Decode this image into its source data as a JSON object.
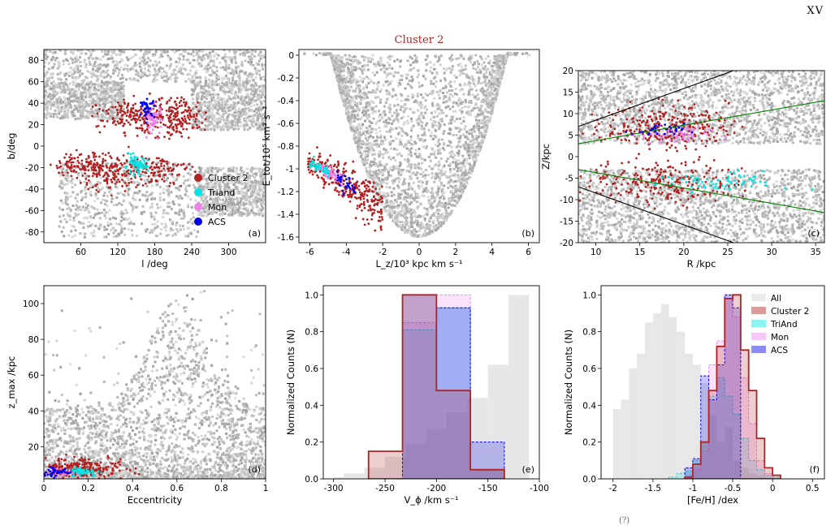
{
  "page": {
    "number": "XV",
    "footer_fragment": "(?)"
  },
  "colors": {
    "background_density": "#c4c4c4",
    "cluster2": "#b22222",
    "triand": "#00e5e5",
    "mon": "#ee82ee",
    "acs": "#0000ee",
    "all": "#d3d3d3",
    "line_black": "#000000",
    "line_green": "#008000",
    "title": "#b22222"
  },
  "figure_title": "Cluster 2",
  "chart_data": [
    {
      "id": "a",
      "type": "scatter",
      "panel_label": "(a)",
      "xlabel": "l /deg",
      "ylabel": "b/deg",
      "xlim": [
        0,
        360
      ],
      "ylim": [
        -90,
        90
      ],
      "xticks": [
        60,
        120,
        180,
        240,
        300
      ],
      "yticks": [
        -80,
        -60,
        -40,
        -20,
        0,
        20,
        40,
        60,
        80
      ],
      "legend": {
        "position": "lower-right",
        "entries": [
          {
            "label": "Cluster 2",
            "color": "#b22222"
          },
          {
            "label": "Triand",
            "color": "#00e5e5"
          },
          {
            "label": "Mon",
            "color": "#ee82ee"
          },
          {
            "label": "ACS",
            "color": "#0000ee"
          }
        ]
      },
      "background_regions": [
        {
          "x": [
            0,
            360
          ],
          "y": [
            60,
            90
          ]
        },
        {
          "x": [
            0,
            130
          ],
          "y": [
            25,
            60
          ]
        },
        {
          "x": [
            240,
            360
          ],
          "y": [
            15,
            60
          ]
        },
        {
          "x": [
            25,
            250
          ],
          "y": [
            -85,
            -15
          ]
        },
        {
          "x": [
            250,
            360
          ],
          "y": [
            -65,
            -20
          ]
        }
      ],
      "series": [
        {
          "name": "Cluster 2",
          "clusters": [
            {
              "cx": 165,
              "cy": 27,
              "sx": 38,
              "sy": 8,
              "n": 260
            },
            {
              "cx": 225,
              "cy": 28,
              "sx": 16,
              "sy": 9,
              "n": 90
            },
            {
              "cx": 80,
              "cy": -18,
              "sx": 32,
              "sy": 6,
              "n": 180
            },
            {
              "cx": 175,
              "cy": -22,
              "sx": 30,
              "sy": 7,
              "n": 130
            },
            {
              "cx": 100,
              "cy": -32,
              "sx": 25,
              "sy": 6,
              "n": 50
            }
          ]
        },
        {
          "name": "Triand",
          "clusters": [
            {
              "cx": 150,
              "cy": -18,
              "sx": 9,
              "sy": 4,
              "n": 70
            }
          ]
        },
        {
          "name": "Mon",
          "clusters": [
            {
              "cx": 178,
              "cy": 25,
              "sx": 7,
              "sy": 7,
              "n": 55
            }
          ]
        },
        {
          "name": "ACS",
          "clusters": [
            {
              "cx": 168,
              "cy": 35,
              "sx": 6,
              "sy": 4,
              "n": 35
            }
          ]
        }
      ]
    },
    {
      "id": "b",
      "type": "scatter",
      "panel_label": "(b)",
      "xlabel": "L_z/10³ kpc km s⁻¹",
      "ylabel": "E_tot/10⁵ km² s⁻²",
      "xlim": [
        -6.6,
        6.6
      ],
      "ylim": [
        -1.65,
        0.05
      ],
      "xticks": [
        -6,
        -4,
        -2,
        0,
        2,
        4,
        6
      ],
      "yticks": [
        -1.6,
        -1.4,
        -1.2,
        -1.0,
        -0.8,
        -0.6,
        -0.4,
        -0.2,
        0.0
      ],
      "background_shape": "v-shape",
      "series": [
        {
          "name": "Cluster 2",
          "curve": {
            "x0": -6.1,
            "x1": -2.0,
            "ya": -0.95,
            "yb": -1.38,
            "width": 0.07
          },
          "n": 320
        },
        {
          "name": "Mon",
          "curve": {
            "x0": -5.6,
            "x1": -4.2,
            "ya": -0.95,
            "yb": -1.38,
            "width": 0.03
          },
          "n": 70
        },
        {
          "name": "Triand",
          "curve": {
            "x0": -6.0,
            "x1": -4.8,
            "ya": -0.95,
            "yb": -1.38,
            "width": 0.03
          },
          "n": 45
        },
        {
          "name": "ACS",
          "curve": {
            "x0": -4.5,
            "x1": -3.5,
            "ya": -0.95,
            "yb": -1.38,
            "width": 0.03
          },
          "n": 30
        }
      ]
    },
    {
      "id": "c",
      "type": "scatter",
      "panel_label": "(c)",
      "xlabel": "R /kpc",
      "ylabel": "Z/kpc",
      "xlim": [
        8,
        36
      ],
      "ylim": [
        -20,
        20
      ],
      "xticks": [
        10,
        15,
        20,
        25,
        30,
        35
      ],
      "yticks": [
        -20,
        -15,
        -10,
        -5,
        0,
        5,
        10,
        15,
        20
      ],
      "lines": [
        {
          "color": "#000000",
          "points": [
            [
              8,
              7
            ],
            [
              27,
              21
            ]
          ]
        },
        {
          "color": "#000000",
          "points": [
            [
              8,
              -7
            ],
            [
              27,
              -21
            ]
          ]
        },
        {
          "color": "#008000",
          "points": [
            [
              8,
              3
            ],
            [
              36,
              13
            ]
          ]
        },
        {
          "color": "#008000",
          "points": [
            [
              8,
              -3
            ],
            [
              36,
              -13
            ]
          ]
        }
      ],
      "series": [
        {
          "name": "Cluster 2",
          "clusters": [
            {
              "cx": 18,
              "cy": 7,
              "sx": 3.5,
              "sy": 2.5,
              "n": 280
            },
            {
              "cx": 18,
              "cy": -6,
              "sx": 4.5,
              "sy": 2.5,
              "n": 240
            }
          ]
        },
        {
          "name": "Triand",
          "clusters": [
            {
              "cx": 24,
              "cy": -6,
              "sx": 3.5,
              "sy": 1.2,
              "n": 70
            }
          ]
        },
        {
          "name": "Mon",
          "clusters": [
            {
              "cx": 19,
              "cy": 5,
              "sx": 2.0,
              "sy": 1.0,
              "n": 60
            }
          ]
        },
        {
          "name": "ACS",
          "clusters": [
            {
              "cx": 17,
              "cy": 6,
              "sx": 1.5,
              "sy": 0.8,
              "n": 30
            }
          ]
        }
      ]
    },
    {
      "id": "d",
      "type": "scatter",
      "panel_label": "(d)",
      "xlabel": "Eccentricity",
      "ylabel": "z_max /kpc",
      "xlim": [
        0,
        1
      ],
      "ylim": [
        2,
        110
      ],
      "xticks": [
        0.0,
        0.2,
        0.4,
        0.6,
        0.8,
        1.0
      ],
      "yticks": [
        20,
        40,
        60,
        80,
        100
      ],
      "series": [
        {
          "name": "Cluster 2",
          "clusters": [
            {
              "cx": 0.17,
              "cy": 8,
              "sx": 0.09,
              "sy": 2.5,
              "n": 260
            }
          ]
        },
        {
          "name": "Triand",
          "clusters": [
            {
              "cx": 0.17,
              "cy": 6,
              "sx": 0.04,
              "sy": 1.2,
              "n": 60
            }
          ]
        },
        {
          "name": "Mon",
          "clusters": [
            {
              "cx": 0.07,
              "cy": 5,
              "sx": 0.03,
              "sy": 1.0,
              "n": 30
            }
          ]
        },
        {
          "name": "ACS",
          "clusters": [
            {
              "cx": 0.05,
              "cy": 6,
              "sx": 0.03,
              "sy": 1.2,
              "n": 40
            }
          ]
        }
      ]
    },
    {
      "id": "e",
      "type": "histogram",
      "panel_label": "(e)",
      "xlabel": "V_ϕ /km s⁻¹",
      "ylabel": "Normalized Counts (N)",
      "xlim": [
        -310,
        -100
      ],
      "ylim": [
        0,
        1.05
      ],
      "xticks": [
        -300,
        -250,
        -200,
        -150,
        -100
      ],
      "yticks": [
        0.0,
        0.2,
        0.4,
        0.6,
        0.8,
        1.0
      ],
      "series": [
        {
          "name": "All",
          "style": "filled",
          "edges": [
            -320,
            -300,
            -290,
            -270,
            -250,
            -230,
            -210,
            -190,
            -170,
            -150,
            -130,
            -110
          ],
          "values": [
            0.0,
            0.01,
            0.03,
            0.06,
            0.12,
            0.19,
            0.27,
            0.36,
            0.44,
            0.62,
            1.0
          ]
        },
        {
          "name": "TriAnd",
          "style": "step",
          "edges": [
            -266,
            -233,
            -200,
            -167,
            -134
          ],
          "values": [
            0.0,
            0.81,
            0.93,
            0.05
          ]
        },
        {
          "name": "Mon",
          "style": "step",
          "edges": [
            -266,
            -233,
            -200,
            -167,
            -134
          ],
          "values": [
            0.0,
            0.85,
            1.0,
            0.05
          ]
        },
        {
          "name": "ACS",
          "style": "step",
          "edges": [
            -266,
            -233,
            -200,
            -167,
            -134
          ],
          "values": [
            0.0,
            1.0,
            0.93,
            0.2
          ]
        },
        {
          "name": "Cluster 2",
          "style": "step",
          "edges": [
            -266,
            -233,
            -200,
            -167,
            -134
          ],
          "values": [
            0.15,
            1.0,
            0.48,
            0.05
          ]
        }
      ]
    },
    {
      "id": "f",
      "type": "histogram",
      "panel_label": "(f)",
      "xlabel": "[Fe/H] /dex",
      "ylabel": "Normalized Counts (N)",
      "xlim": [
        -2.15,
        0.65
      ],
      "ylim": [
        0,
        1.05
      ],
      "xticks": [
        -2.0,
        -1.5,
        -1.0,
        -0.5,
        0.0,
        0.5
      ],
      "yticks": [
        0.0,
        0.2,
        0.4,
        0.6,
        0.8,
        1.0
      ],
      "legend": {
        "position": "top-right",
        "entries": [
          {
            "label": "All",
            "color": "#d3d3d3"
          },
          {
            "label": "Cluster 2",
            "color": "#b22222"
          },
          {
            "label": "TriAnd",
            "color": "#00e5e5"
          },
          {
            "label": "Mon",
            "color": "#ee82ee"
          },
          {
            "label": "ACS",
            "color": "#0000ee"
          }
        ]
      },
      "series": [
        {
          "name": "All",
          "style": "filled",
          "edges": [
            -2.0,
            -1.9,
            -1.8,
            -1.7,
            -1.6,
            -1.5,
            -1.4,
            -1.3,
            -1.2,
            -1.1,
            -1.0,
            -0.9,
            -0.8,
            -0.7,
            -0.6,
            -0.5,
            -0.4,
            -0.3,
            -0.2,
            -0.1,
            0.0
          ],
          "values": [
            0.38,
            0.43,
            0.6,
            0.68,
            0.85,
            0.9,
            0.95,
            0.88,
            0.8,
            0.68,
            0.62,
            0.52,
            0.35,
            0.2,
            0.28,
            0.1,
            0.06,
            0.03,
            0.02,
            0.01
          ]
        },
        {
          "name": "TriAnd",
          "style": "step",
          "edges": [
            -1.3,
            -1.2,
            -1.1,
            -1.0,
            -0.9,
            -0.8,
            -0.7,
            -0.6,
            -0.5,
            -0.4,
            -0.3,
            -0.2,
            -0.1,
            0.0,
            0.1
          ],
          "values": [
            0.01,
            0.03,
            0.04,
            0.1,
            0.2,
            0.45,
            0.55,
            0.45,
            0.35,
            0.22,
            0.1,
            0.05,
            0.02,
            0.01
          ]
        },
        {
          "name": "Mon",
          "style": "step",
          "edges": [
            -1.1,
            -1.0,
            -0.9,
            -0.8,
            -0.7,
            -0.6,
            -0.5,
            -0.4,
            -0.3,
            -0.2,
            -0.1,
            0.0
          ],
          "values": [
            0.02,
            0.05,
            0.15,
            0.62,
            0.75,
            1.0,
            0.88,
            0.55,
            0.3,
            0.1,
            0.03
          ]
        },
        {
          "name": "ACS",
          "style": "step",
          "edges": [
            -1.1,
            -1.0,
            -0.9,
            -0.8,
            -0.7,
            -0.6,
            -0.5,
            -0.4
          ],
          "values": [
            0.06,
            0.11,
            0.56,
            0.43,
            0.62,
            1.0,
            0.93
          ]
        },
        {
          "name": "Cluster 2",
          "style": "step",
          "edges": [
            -1.1,
            -1.0,
            -0.9,
            -0.8,
            -0.7,
            -0.6,
            -0.5,
            -0.4,
            -0.3,
            -0.2,
            -0.1,
            0.0,
            0.1
          ],
          "values": [
            0.01,
            0.08,
            0.2,
            0.48,
            0.72,
            0.98,
            1.0,
            0.7,
            0.48,
            0.22,
            0.06,
            0.02
          ]
        }
      ]
    }
  ]
}
